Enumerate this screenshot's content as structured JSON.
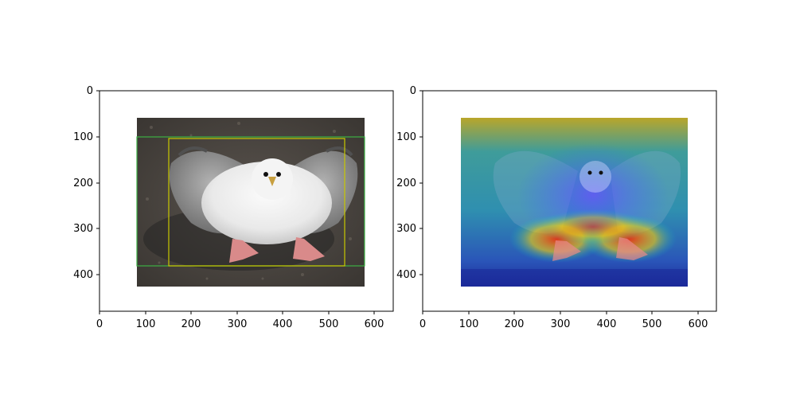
{
  "figure": {
    "panels": [
      {
        "name": "original-with-boxes",
        "image": "photo of a grey and white seabird (fulmar) sitting on dark gravel, wings spread, pink webbed feet",
        "x_ticks": [
          "0",
          "100",
          "200",
          "300",
          "400",
          "500",
          "600"
        ],
        "y_ticks": [
          "0",
          "100",
          "200",
          "300",
          "400"
        ],
        "xlim": [
          0,
          640
        ],
        "ylim": [
          480,
          0
        ],
        "boxes": [
          {
            "color": "#3cb043",
            "x0": 80,
            "y0": 102,
            "x1": 576,
            "y1": 384
          },
          {
            "color": "#c8c800",
            "x0": 150,
            "y0": 104,
            "x1": 530,
            "y1": 380
          }
        ]
      },
      {
        "name": "heatmap-overlay",
        "image": "same bird photo overlaid with a jet-colormap attention heatmap (red at the feet/belly, blue on background)",
        "x_ticks": [
          "0",
          "100",
          "200",
          "300",
          "400",
          "500",
          "600"
        ],
        "y_ticks": [
          "0",
          "100",
          "200",
          "300",
          "400"
        ],
        "xlim": [
          0,
          640
        ],
        "ylim": [
          480,
          0
        ]
      }
    ]
  }
}
